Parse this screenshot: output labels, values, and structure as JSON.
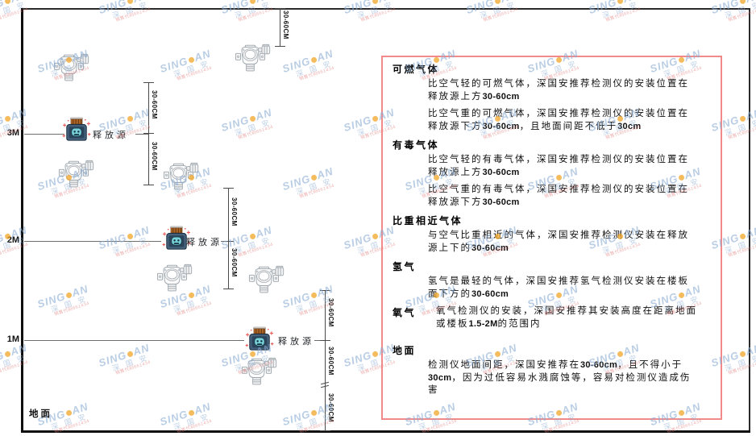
{
  "diagram": {
    "levels": [
      {
        "label": "3M"
      },
      {
        "label": "2M"
      },
      {
        "label": "1M"
      }
    ],
    "release_source_label": "释放源",
    "dimension_label": "30-60CM",
    "ground_label": "地面"
  },
  "panel": {
    "sections": [
      {
        "heading": "可燃气体",
        "paras": [
          "比空气轻的可燃气体，深国安推荐检测仪的安装位置在释放源上方30-60cm",
          "比空气重的可燃气体，深国安推荐检测仪的安装位置在释放源下方30-60cm，且地面间距不低于30cm"
        ]
      },
      {
        "heading": "有毒气体",
        "paras": [
          "比空气轻的有毒气体，深国安推荐检测仪的安装位置在释放源上方30-60cm",
          "比空气重的有毒气体，深国安推荐检测仪的安装位置在释放源下方30-60cm"
        ]
      },
      {
        "heading": "比重相近气体",
        "paras": [
          "与空气比重相近的气体，深国安推荐检测仪安装在释放源上下的30-60cm"
        ]
      },
      {
        "heading": "氢气",
        "paras": [
          "氢气是最轻的气体，深国安推荐氢气检测仪安装在楼板面下方的30-60cm"
        ]
      },
      {
        "heading": "氧气",
        "inline_heading": true,
        "paras": [
          "氧气检测仪的安装，深国安推荐其安装高度在距离地面或楼板1.5-2M的范围内"
        ]
      },
      {
        "heading": "地面",
        "gap_before": true,
        "paras": [
          "检测仪地面间距，深国安推荐在30-60cm，且不得小于30cm，因为过低容易水溅腐蚀等，容易对检测仪造成伤害"
        ]
      }
    ]
  },
  "watermark": {
    "brand_left": "SING",
    "brand_right": "AN",
    "brand_cn": "深 国 安",
    "code": "销售代码661434"
  },
  "colors": {
    "panel_border": "#f28a8a",
    "watermark_blue": "#8babd4",
    "watermark_dot_orange": "#f2a628",
    "source_body_navy": "#44607b",
    "source_cap_orange": "#ad6526",
    "source_face_teal": "#79d2da",
    "sparkle_red": "#e95f5f",
    "line_dark": "#2b2b2b"
  }
}
